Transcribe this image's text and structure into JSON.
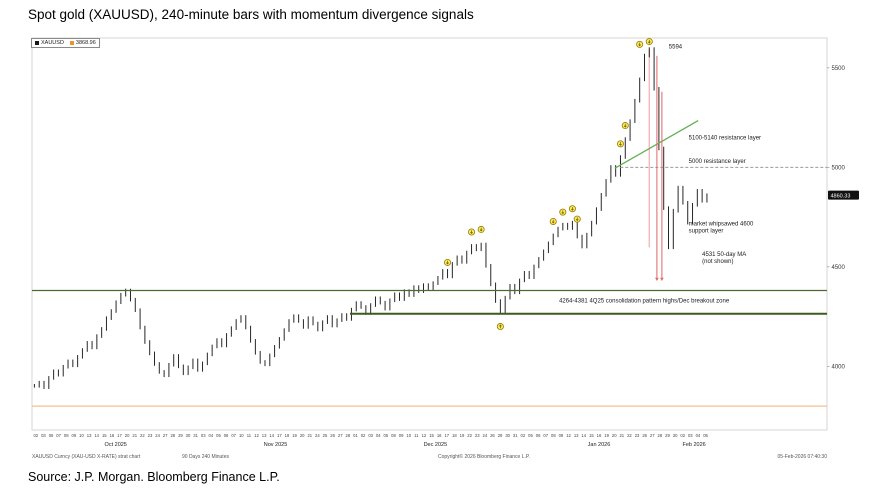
{
  "page": {
    "title": "Spot gold (XAUUSD), 240-minute bars with momentum divergence signals",
    "source": "Source: J.P. Morgan. Bloomberg Finance L.P."
  },
  "legend": {
    "series1": "XAUUSD",
    "series1_color": "#1a1a1a",
    "series2": "3868.96",
    "series2_color": "#e8952e"
  },
  "footer": {
    "left": "XAUUSD Curncy (XAU-USD X-RATE) strat chart",
    "left2": "90 Days 240 Minutes",
    "center": "Copyright© 2026 Bloomberg Finance L.P.",
    "right": "05-Feb-2026 07:40:30"
  },
  "chart_data": {
    "type": "bar",
    "bar_style": "ohlc-240-minute-bars",
    "title": "Spot gold (XAUUSD), 240-minute bars with momentum divergence signals",
    "xlabel": "",
    "ylabel": "",
    "ylim": [
      3680,
      5650
    ],
    "yticks": [
      4000,
      4500,
      5000,
      5500
    ],
    "last_price": 4860.33,
    "data_frac": 0.852,
    "closes": [
      3902,
      3918,
      3895,
      3942,
      3975,
      3958,
      3998,
      4025,
      4005,
      4048,
      4082,
      4118,
      4095,
      4152,
      4188,
      4242,
      4278,
      4322,
      4360,
      4381,
      4335,
      4282,
      4195,
      4122,
      4065,
      4012,
      3972,
      3955,
      4008,
      4052,
      4000,
      3965,
      3995,
      4030,
      3982,
      4015,
      4060,
      4100,
      4132,
      4105,
      4158,
      4192,
      4228,
      4248,
      4195,
      4128,
      4068,
      4022,
      4010,
      4055,
      4098,
      4138,
      4182,
      4228,
      4252,
      4228,
      4198,
      4242,
      4215,
      4185,
      4222,
      4248,
      4205,
      4232,
      4258,
      4238,
      4285,
      4318,
      4298,
      4268,
      4308,
      4342,
      4320,
      4290,
      4332,
      4362,
      4338,
      4378,
      4358,
      4398,
      4378,
      4408,
      4390,
      4418,
      4445,
      4480,
      4452,
      4515,
      4548,
      4525,
      4572,
      4605,
      4588,
      4612,
      4505,
      4412,
      4328,
      4272,
      4345,
      4405,
      4372,
      4432,
      4470,
      4448,
      4502,
      4540,
      4578,
      4618,
      4658,
      4692,
      4712,
      4695,
      4722,
      4652,
      4602,
      4662,
      4722,
      4790,
      4862,
      4932,
      5002,
      4962,
      5052,
      5142,
      5232,
      5335,
      5442,
      5562,
      5594,
      5395,
      5095,
      4795,
      4598,
      4782,
      4898,
      4822,
      4722,
      4812,
      4882,
      4832,
      4860
    ],
    "levels": [
      {
        "price": 5000,
        "fx1": 0.74,
        "fx2": 1.0,
        "color": "#999999",
        "dash": "3,2",
        "width": 1,
        "label": "5000 resistance layer"
      },
      {
        "price": 4381,
        "fx1": 0.0,
        "fx2": 1.0,
        "color": "#4d6b2b",
        "dash": "",
        "width": 1.2,
        "label": "4Q25 consolidation pattern high"
      },
      {
        "price": 4264,
        "fx1": 0.4,
        "fx2": 1.0,
        "color": "#3a5c1e",
        "dash": "",
        "width": 2,
        "label": "Dec breakout zone"
      },
      {
        "price": 3800,
        "fx1": 0.0,
        "fx2": 1.0,
        "color": "#f4c18f",
        "dash": "",
        "width": 1.2,
        "label": ""
      }
    ],
    "trendline": {
      "fx1": 0.733,
      "price1": 4995,
      "fx2": 0.838,
      "price2": 5235,
      "color": "#63b053",
      "width": 1.3,
      "label": "5100-5140 resistance layer"
    },
    "peak_line": {
      "i": 128,
      "top": 5594,
      "bottom": 4598,
      "color": "#f3b9b9",
      "width": 1.4
    },
    "crash": {
      "i": 130,
      "top1": 5560,
      "top2": 5380,
      "bottom": 4445,
      "color": "#e06666"
    },
    "signals": [
      {
        "i": 86,
        "p": 4522,
        "d": "down"
      },
      {
        "i": 91,
        "p": 4675,
        "d": "down"
      },
      {
        "i": 93,
        "p": 4688,
        "d": "down"
      },
      {
        "i": 97,
        "p": 4200,
        "d": "up"
      },
      {
        "i": 108,
        "p": 4728,
        "d": "down"
      },
      {
        "i": 110,
        "p": 4775,
        "d": "down"
      },
      {
        "i": 112,
        "p": 4792,
        "d": "down"
      },
      {
        "i": 113,
        "p": 4740,
        "d": "down"
      },
      {
        "i": 122,
        "p": 5118,
        "d": "down"
      },
      {
        "i": 123,
        "p": 5210,
        "d": "down"
      },
      {
        "i": 126,
        "p": 5618,
        "d": "down"
      },
      {
        "i": 128,
        "p": 5632,
        "d": "down"
      }
    ],
    "annotations": [
      {
        "fx": 0.801,
        "price": 5608,
        "text": "5594"
      },
      {
        "fx": 0.826,
        "price": 5150,
        "text": "5100-5140 resistance layer"
      },
      {
        "fx": 0.826,
        "price": 5032,
        "text": "5000 resistance layer"
      },
      {
        "fx": 0.826,
        "price": 4718,
        "text": "market whipsawed 4600\nsupport layer"
      },
      {
        "fx": 0.843,
        "price": 4565,
        "text": "4531 50-day MA\n(not shown)"
      },
      {
        "fx": 0.663,
        "price": 4332,
        "text": "4264-4381 4Q25 consolidation pattern highs/Dec breakout zone"
      }
    ],
    "months": [
      {
        "label": "Oct 2025",
        "days": [
          "02",
          "03",
          "06",
          "07",
          "08",
          "09",
          "10",
          "13",
          "14",
          "15",
          "16",
          "17",
          "20",
          "21",
          "22",
          "23",
          "24",
          "27",
          "28",
          "29",
          "30",
          "31"
        ]
      },
      {
        "label": "Nov 2025",
        "days": [
          "03",
          "04",
          "05",
          "06",
          "07",
          "10",
          "11",
          "12",
          "13",
          "14",
          "17",
          "18",
          "19",
          "20",
          "21",
          "24",
          "25",
          "26",
          "27",
          "28"
        ]
      },
      {
        "label": "Dec 2025",
        "days": [
          "01",
          "02",
          "03",
          "04",
          "05",
          "08",
          "09",
          "10",
          "11",
          "12",
          "15",
          "16",
          "17",
          "18",
          "19",
          "22",
          "23",
          "24",
          "26",
          "29",
          "30",
          "31"
        ]
      },
      {
        "label": "Jan 2026",
        "days": [
          "02",
          "05",
          "06",
          "07",
          "08",
          "09",
          "12",
          "13",
          "14",
          "15",
          "16",
          "19",
          "20",
          "21",
          "22",
          "23",
          "26",
          "27",
          "28",
          "29",
          "30"
        ]
      },
      {
        "label": "Feb 2026",
        "days": [
          "02",
          "03",
          "04",
          "05"
        ]
      }
    ]
  }
}
